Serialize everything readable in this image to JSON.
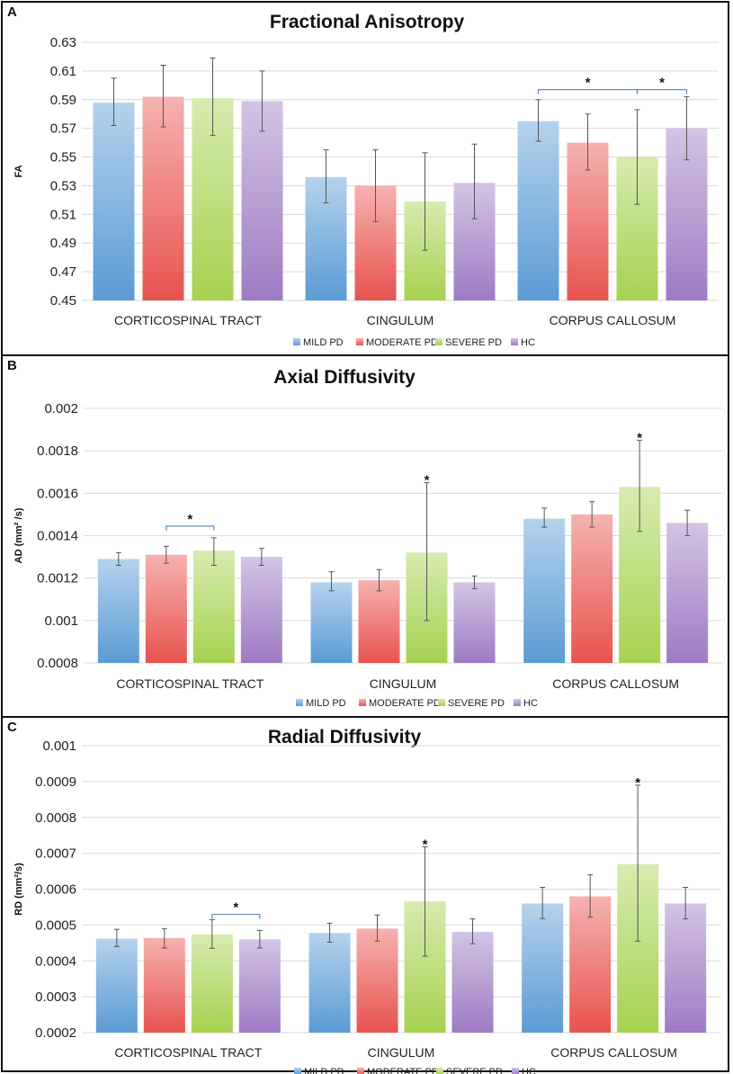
{
  "colors": {
    "mild_pd": "#5b9bd5",
    "moderate_pd": "#e8534f",
    "severe_pd": "#a6d24f",
    "hc": "#9e7bc4",
    "bracket": "#5b8fc9"
  },
  "chart_data": [
    {
      "panel_label": "A",
      "type": "bar",
      "title": "Fractional Anisotropy",
      "ylabel": "FA",
      "xlabel": "",
      "ylim": [
        0.45,
        0.63
      ],
      "yticks": [
        "0.45",
        "0.47",
        "0.49",
        "0.51",
        "0.53",
        "0.55",
        "0.57",
        "0.59",
        "0.61",
        "0.63"
      ],
      "categories": [
        "CORTICOSPINAL TRACT",
        "CINGULUM",
        "CORPUS CALLOSUM"
      ],
      "series": [
        {
          "name": "MILD PD",
          "values": [
            0.588,
            0.536,
            0.575
          ],
          "err_low": [
            0.572,
            0.518,
            0.561
          ],
          "err_high": [
            0.605,
            0.555,
            0.59
          ]
        },
        {
          "name": "MODERATE PD",
          "values": [
            0.592,
            0.53,
            0.56
          ],
          "err_low": [
            0.571,
            0.505,
            0.541
          ],
          "err_high": [
            0.614,
            0.555,
            0.58
          ]
        },
        {
          "name": "SEVERE PD",
          "values": [
            0.591,
            0.519,
            0.55
          ],
          "err_low": [
            0.565,
            0.485,
            0.517
          ],
          "err_high": [
            0.619,
            0.553,
            0.583
          ]
        },
        {
          "name": "HC",
          "values": [
            0.589,
            0.532,
            0.57
          ],
          "err_low": [
            0.568,
            0.507,
            0.548
          ],
          "err_high": [
            0.61,
            0.559,
            0.592
          ]
        }
      ],
      "significance": [
        {
          "category": 2,
          "from": 0,
          "to": 2,
          "type": "bracket",
          "label": "*",
          "y": 0.597
        },
        {
          "category": 2,
          "from": 2,
          "to": 3,
          "type": "bracket",
          "label": "*",
          "y": 0.597
        }
      ],
      "legend": "bottom"
    },
    {
      "panel_label": "B",
      "type": "bar",
      "title": "Axial Diffusivity",
      "ylabel": "AD (mm² /s)",
      "xlabel": "",
      "ylim": [
        0.0008,
        0.002
      ],
      "yticks": [
        "0.0008",
        "0.001",
        "0.0012",
        "0.0014",
        "0.0016",
        "0.0018",
        "0.002"
      ],
      "categories": [
        "CORTICOSPINAL TRACT",
        "CINGULUM",
        "CORPUS CALLOSUM"
      ],
      "series": [
        {
          "name": "MILD PD",
          "values": [
            0.00129,
            0.00118,
            0.00148
          ],
          "err_low": [
            0.00126,
            0.00114,
            0.00144
          ],
          "err_high": [
            0.00132,
            0.00123,
            0.00153
          ]
        },
        {
          "name": "MODERATE PD",
          "values": [
            0.00131,
            0.00119,
            0.0015
          ],
          "err_low": [
            0.00127,
            0.00114,
            0.00144
          ],
          "err_high": [
            0.00135,
            0.00124,
            0.00156
          ]
        },
        {
          "name": "SEVERE PD",
          "values": [
            0.00133,
            0.00132,
            0.00163
          ],
          "err_low": [
            0.00126,
            0.001,
            0.00142
          ],
          "err_high": [
            0.00139,
            0.00165,
            0.00185
          ]
        },
        {
          "name": "HC",
          "values": [
            0.0013,
            0.00118,
            0.00146
          ],
          "err_low": [
            0.00126,
            0.00115,
            0.0014
          ],
          "err_high": [
            0.00134,
            0.00121,
            0.00152
          ]
        }
      ],
      "significance": [
        {
          "category": 0,
          "from": 1,
          "to": 2,
          "type": "bracket",
          "label": "*",
          "y": 0.001445
        },
        {
          "category": 1,
          "from": 2,
          "to": 2,
          "type": "star",
          "label": "*"
        },
        {
          "category": 2,
          "from": 2,
          "to": 2,
          "type": "star",
          "label": "*"
        }
      ],
      "legend": "bottom"
    },
    {
      "panel_label": "C",
      "type": "bar",
      "title": "Radial Diffusivity",
      "ylabel": "RD (mm²/s)",
      "xlabel": "",
      "ylim": [
        0.0002,
        0.001
      ],
      "yticks": [
        "0.0002",
        "0.0003",
        "0.0004",
        "0.0005",
        "0.0006",
        "0.0007",
        "0.0008",
        "0.0009",
        "0.001"
      ],
      "categories": [
        "CORTICOSPINAL TRACT",
        "CINGULUM",
        "CORPUS CALLOSUM"
      ],
      "series": [
        {
          "name": "MILD PD",
          "values": [
            0.000462,
            0.000478,
            0.00056
          ],
          "err_low": [
            0.00044,
            0.000452,
            0.000518
          ],
          "err_high": [
            0.000488,
            0.000505,
            0.000605
          ]
        },
        {
          "name": "MODERATE PD",
          "values": [
            0.000464,
            0.00049,
            0.00058
          ],
          "err_low": [
            0.000436,
            0.000455,
            0.000522
          ],
          "err_high": [
            0.00049,
            0.000528,
            0.00064
          ]
        },
        {
          "name": "SEVERE PD",
          "values": [
            0.000474,
            0.000566,
            0.00067
          ],
          "err_low": [
            0.000435,
            0.000413,
            0.000455
          ],
          "err_high": [
            0.000515,
            0.000718,
            0.00089
          ]
        },
        {
          "name": "HC",
          "values": [
            0.00046,
            0.000481,
            0.00056
          ],
          "err_low": [
            0.000436,
            0.000448,
            0.000517
          ],
          "err_high": [
            0.000485,
            0.000517,
            0.000605
          ]
        }
      ],
      "significance": [
        {
          "category": 0,
          "from": 2,
          "to": 3,
          "type": "bracket",
          "label": "*",
          "y": 0.00053
        },
        {
          "category": 1,
          "from": 2,
          "to": 2,
          "type": "star",
          "label": "*"
        },
        {
          "category": 2,
          "from": 2,
          "to": 2,
          "type": "star",
          "label": "*"
        }
      ],
      "legend": "bottom"
    }
  ]
}
